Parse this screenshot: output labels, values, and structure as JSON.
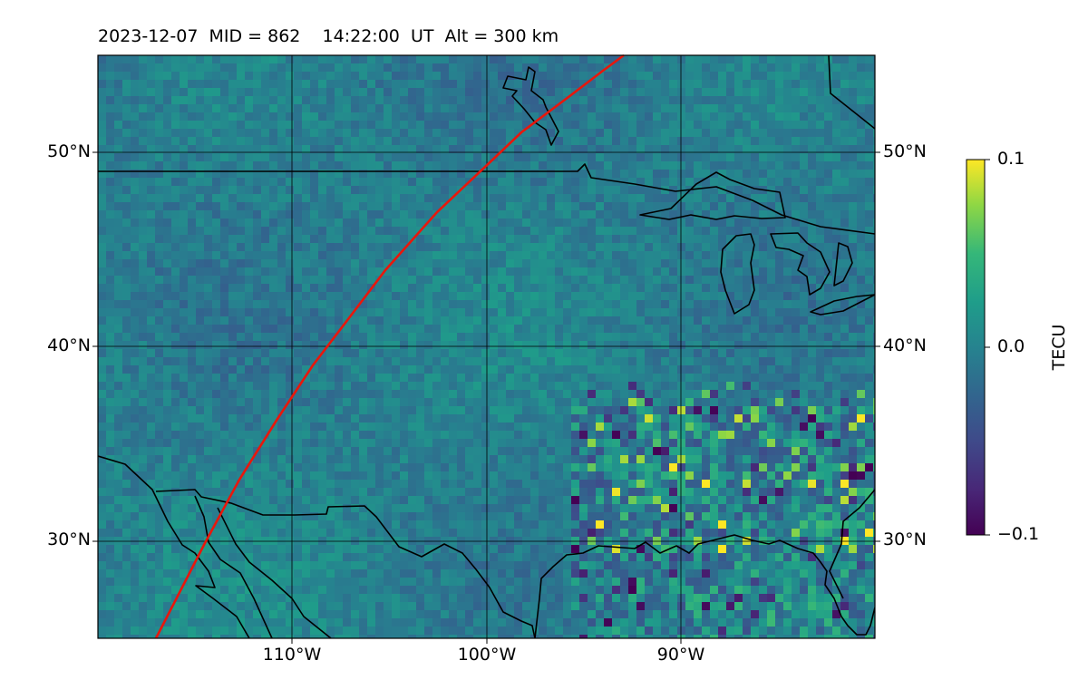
{
  "title": "2023-12-07  MID = 862    14:22:00  UT  Alt = 300 km",
  "map": {
    "lon_range": [
      -120,
      -80
    ],
    "lat_range": [
      25,
      55
    ],
    "lat_labels": [
      "50°N",
      "40°N",
      "30°N"
    ],
    "lon_labels": [
      "110°W",
      "100°W",
      "90°W"
    ],
    "gridlines": true,
    "colormap": "viridis",
    "track_color": "#e8170c"
  },
  "colorbar": {
    "label": "TECU",
    "ticks": [
      "0.1",
      "0.0",
      "−0.1"
    ],
    "range": [
      -0.1,
      0.1
    ]
  }
}
